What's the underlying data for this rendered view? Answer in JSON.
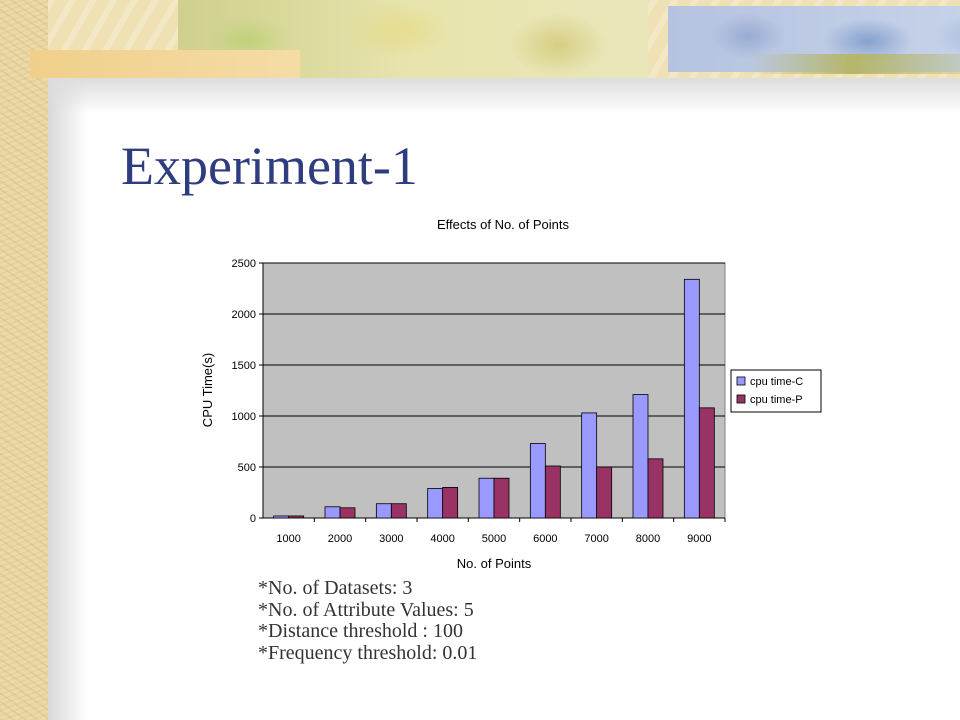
{
  "slide": {
    "title": "Experiment-1",
    "notes": [
      "*No. of Datasets: 3",
      "*No. of Attribute Values: 5",
      "*Distance threshold : 100",
      "*Frequency threshold: 0.01"
    ]
  },
  "colors": {
    "title": "#2f3c7e",
    "plot_area": "#c0c0c0",
    "series_c": "#9999ff",
    "series_p": "#993366"
  },
  "chart_data": {
    "type": "bar",
    "title": "Effects of No. of Points",
    "xlabel": "No. of Points",
    "ylabel": "CPU Time(s)",
    "categories": [
      "1000",
      "2000",
      "3000",
      "4000",
      "5000",
      "6000",
      "7000",
      "8000",
      "9000"
    ],
    "ylim": [
      0,
      2500
    ],
    "yticks": [
      "0",
      "500",
      "1000",
      "1500",
      "2000",
      "2500"
    ],
    "grid": true,
    "legend": "right",
    "series": [
      {
        "name": "cpu time-C",
        "color": "#9999ff",
        "values": [
          20,
          110,
          140,
          290,
          390,
          730,
          1030,
          1210,
          2340
        ]
      },
      {
        "name": "cpu time-P",
        "color": "#993366",
        "values": [
          20,
          100,
          140,
          300,
          390,
          510,
          500,
          580,
          1080
        ]
      }
    ]
  }
}
